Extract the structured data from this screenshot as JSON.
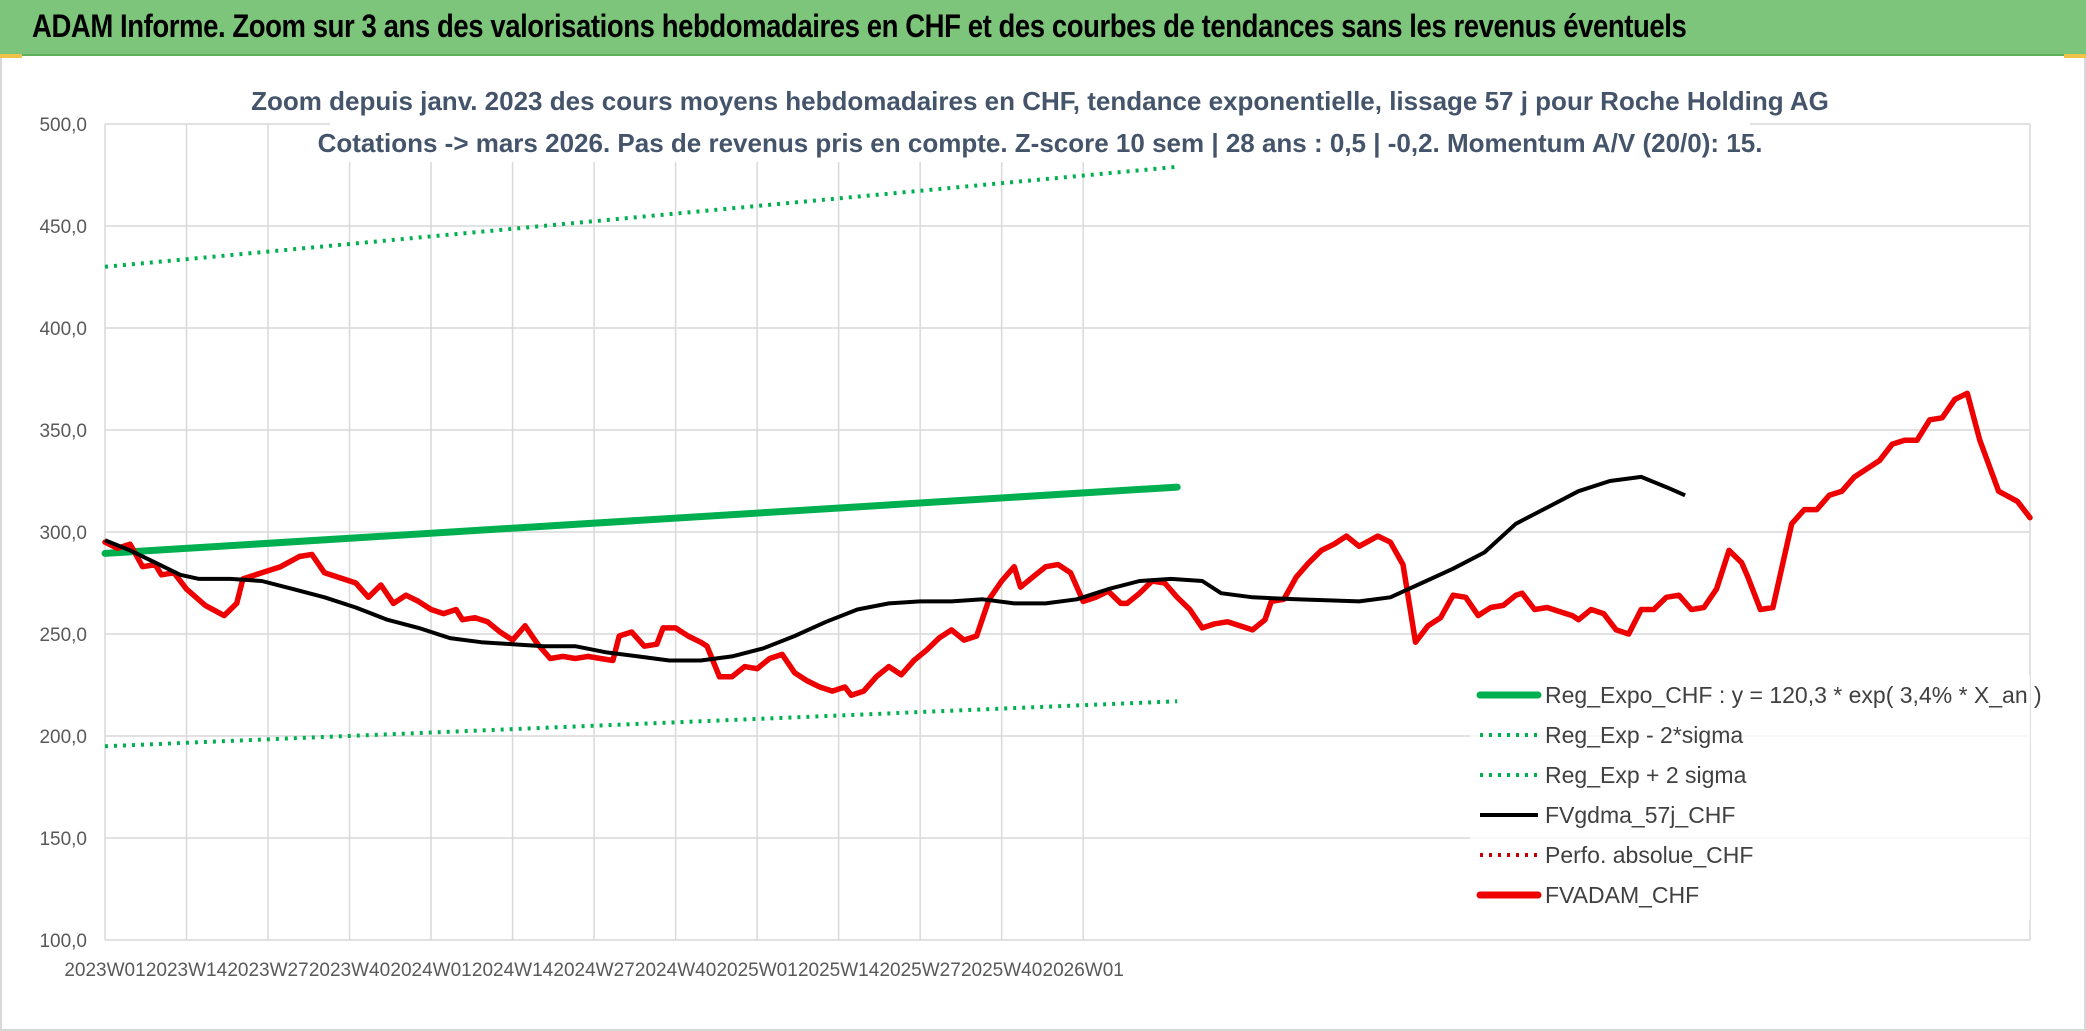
{
  "header": {
    "title": "ADAM Informe. Zoom sur 3 ans des valorisations hebdomadaires en CHF et des courbes de tendances sans les revenus éventuels"
  },
  "chart_data": {
    "type": "line",
    "title": "Zoom depuis janv. 2023 des cours moyens hebdomadaires en CHF, tendance exponentielle, lissage 57 j pour Roche Holding AG",
    "subtitle": "Cotations -> mars 2026. Pas de revenus pris en compte. Z-score 10 sem | 28 ans : 0,5 | -0,2. Momentum A/V (20/0): 15.",
    "ylim": [
      100,
      500
    ],
    "y_ticks": [
      "100,0",
      "150,0",
      "200,0",
      "250,0",
      "300,0",
      "350,0",
      "400,0",
      "450,0",
      "500,0"
    ],
    "x_ticks": [
      "2023W01",
      "2023W14",
      "2023W27",
      "2023W40",
      "2024W01",
      "2024W14",
      "2024W27",
      "2024W40",
      "2025W01",
      "2025W14",
      "2025W27",
      "2025W40",
      "2026W01"
    ],
    "grid": true,
    "legend_position": "bottom-right",
    "colors": {
      "trend": "#00b050",
      "smooth": "#000000",
      "adam": "#ee0000",
      "perfo": "#c00000"
    },
    "series": [
      {
        "name": "Reg_Expo_CHF : y = 120,3 * exp( 3,4% * X_an )",
        "style": "solid-thick",
        "color": "#00b050",
        "values": [
          [
            0,
            289.5
          ],
          [
            171,
            322
          ]
        ]
      },
      {
        "name": "Reg_Exp - 2*sigma",
        "style": "dotted",
        "color": "#00b050",
        "values": [
          [
            0,
            195
          ],
          [
            171,
            217
          ]
        ]
      },
      {
        "name": "Reg_Exp + 2 sigma",
        "style": "dotted",
        "color": "#00b050",
        "values": [
          [
            0,
            430
          ],
          [
            171,
            479
          ]
        ]
      },
      {
        "name": "FVgdma_57j_CHF",
        "style": "solid",
        "color": "#000000",
        "values": [
          [
            0,
            296
          ],
          [
            4,
            291
          ],
          [
            8,
            285
          ],
          [
            12,
            279
          ],
          [
            15,
            277
          ],
          [
            20,
            277
          ],
          [
            25,
            276
          ],
          [
            30,
            272
          ],
          [
            35,
            268
          ],
          [
            40,
            263
          ],
          [
            45,
            257
          ],
          [
            50,
            253
          ],
          [
            55,
            248
          ],
          [
            60,
            246
          ],
          [
            65,
            245
          ],
          [
            70,
            244
          ],
          [
            75,
            244
          ],
          [
            80,
            241
          ],
          [
            85,
            239
          ],
          [
            90,
            237
          ],
          [
            95,
            237
          ],
          [
            100,
            239
          ],
          [
            105,
            243
          ],
          [
            110,
            249
          ],
          [
            115,
            256
          ],
          [
            120,
            262
          ],
          [
            125,
            265
          ],
          [
            130,
            266
          ],
          [
            135,
            266
          ],
          [
            140,
            267
          ],
          [
            145,
            265
          ],
          [
            150,
            265
          ],
          [
            155,
            267
          ],
          [
            160,
            272
          ],
          [
            165,
            276
          ],
          [
            170,
            277
          ],
          [
            175,
            276
          ],
          [
            178,
            270
          ],
          [
            183,
            268
          ],
          [
            190,
            267
          ],
          [
            200,
            266
          ],
          [
            205,
            268
          ],
          [
            210,
            275
          ],
          [
            215,
            282
          ],
          [
            220,
            290
          ],
          [
            225,
            304
          ],
          [
            230,
            312
          ],
          [
            235,
            320
          ],
          [
            240,
            325
          ],
          [
            245,
            327
          ],
          [
            249,
            322
          ],
          [
            252,
            318
          ]
        ]
      },
      {
        "name": "Perfo. absolue_CHF",
        "style": "dotted",
        "color": "#c00000",
        "values": []
      },
      {
        "name": "FVADAM_CHF",
        "style": "solid-thick",
        "color": "#ee0000",
        "values": [
          [
            0,
            295
          ],
          [
            2,
            292
          ],
          [
            4,
            294
          ],
          [
            6,
            283
          ],
          [
            8,
            284
          ],
          [
            9,
            279
          ],
          [
            11,
            280
          ],
          [
            13,
            272
          ],
          [
            16,
            264
          ],
          [
            19,
            259
          ],
          [
            21,
            265
          ],
          [
            22,
            277
          ],
          [
            25,
            280
          ],
          [
            28,
            283
          ],
          [
            31,
            288
          ],
          [
            33,
            289
          ],
          [
            35,
            280
          ],
          [
            38,
            277
          ],
          [
            40,
            275
          ],
          [
            42,
            268
          ],
          [
            44,
            274
          ],
          [
            46,
            265
          ],
          [
            48,
            269
          ],
          [
            50,
            266
          ],
          [
            52,
            262
          ],
          [
            54,
            260
          ],
          [
            56,
            262
          ],
          [
            57,
            257
          ],
          [
            59,
            258
          ],
          [
            61,
            256
          ],
          [
            63,
            251
          ],
          [
            65,
            247
          ],
          [
            67,
            254
          ],
          [
            69,
            245
          ],
          [
            71,
            238
          ],
          [
            73,
            239
          ],
          [
            75,
            238
          ],
          [
            77,
            239
          ],
          [
            79,
            238
          ],
          [
            81,
            237
          ],
          [
            82,
            249
          ],
          [
            84,
            251
          ],
          [
            86,
            244
          ],
          [
            88,
            245
          ],
          [
            89,
            253
          ],
          [
            91,
            253
          ],
          [
            93,
            249
          ],
          [
            95,
            246
          ],
          [
            96,
            244
          ],
          [
            98,
            229
          ],
          [
            100,
            229
          ],
          [
            102,
            234
          ],
          [
            104,
            233
          ],
          [
            106,
            238
          ],
          [
            108,
            240
          ],
          [
            110,
            231
          ],
          [
            112,
            227
          ],
          [
            114,
            224
          ],
          [
            116,
            222
          ],
          [
            118,
            224
          ],
          [
            119,
            220
          ],
          [
            121,
            222
          ],
          [
            123,
            229
          ],
          [
            125,
            234
          ],
          [
            127,
            230
          ],
          [
            129,
            237
          ],
          [
            131,
            242
          ],
          [
            133,
            248
          ],
          [
            135,
            252
          ],
          [
            137,
            247
          ],
          [
            139,
            249
          ],
          [
            141,
            267
          ],
          [
            143,
            276
          ],
          [
            145,
            283
          ],
          [
            146,
            273
          ],
          [
            148,
            278
          ],
          [
            150,
            283
          ],
          [
            152,
            284
          ],
          [
            154,
            280
          ],
          [
            156,
            266
          ],
          [
            158,
            268
          ],
          [
            160,
            271
          ],
          [
            162,
            265
          ],
          [
            163,
            265
          ],
          [
            165,
            270
          ],
          [
            167,
            276
          ],
          [
            169,
            275
          ],
          [
            171,
            268
          ],
          [
            173,
            262
          ],
          [
            175,
            253
          ],
          [
            177,
            255
          ],
          [
            179,
            256
          ],
          [
            181,
            254
          ],
          [
            183,
            252
          ],
          [
            185,
            257
          ],
          [
            186,
            266
          ],
          [
            188,
            267
          ],
          [
            190,
            278
          ],
          [
            192,
            285
          ],
          [
            194,
            291
          ],
          [
            196,
            294
          ],
          [
            198,
            298
          ],
          [
            200,
            293
          ],
          [
            203,
            298
          ],
          [
            205,
            295
          ],
          [
            207,
            284
          ],
          [
            209,
            246
          ],
          [
            211,
            254
          ],
          [
            213,
            258
          ],
          [
            215,
            269
          ],
          [
            217,
            268
          ],
          [
            219,
            259
          ],
          [
            221,
            263
          ],
          [
            223,
            264
          ],
          [
            225,
            269
          ],
          [
            226,
            270
          ],
          [
            228,
            262
          ],
          [
            230,
            263
          ],
          [
            232,
            261
          ],
          [
            234,
            259
          ],
          [
            235,
            257
          ],
          [
            237,
            262
          ],
          [
            239,
            260
          ],
          [
            241,
            252
          ],
          [
            243,
            250
          ],
          [
            245,
            262
          ],
          [
            247,
            262
          ],
          [
            249,
            268
          ],
          [
            251,
            269
          ],
          [
            253,
            262
          ],
          [
            255,
            263
          ],
          [
            257,
            272
          ],
          [
            259,
            291
          ],
          [
            261,
            285
          ],
          [
            262,
            278
          ],
          [
            264,
            262
          ],
          [
            266,
            263
          ],
          [
            269,
            304
          ],
          [
            271,
            311
          ],
          [
            273,
            311
          ],
          [
            275,
            318
          ],
          [
            277,
            320
          ],
          [
            279,
            327
          ],
          [
            283,
            335
          ],
          [
            285,
            343
          ],
          [
            287,
            345
          ],
          [
            289,
            345
          ],
          [
            291,
            355
          ],
          [
            293,
            356
          ],
          [
            295,
            365
          ],
          [
            297,
            368
          ],
          [
            299,
            345
          ],
          [
            302,
            320
          ],
          [
            305,
            315
          ],
          [
            307,
            307
          ]
        ]
      }
    ]
  },
  "legend": [
    {
      "label": "Reg_Expo_CHF : y = 120,3 * exp( 3,4% * X_an )",
      "style": "solid-thick",
      "color": "#00b050"
    },
    {
      "label": "Reg_Exp - 2*sigma",
      "style": "dotted",
      "color": "#00b050"
    },
    {
      "label": "Reg_Exp + 2 sigma",
      "style": "dotted",
      "color": "#00b050"
    },
    {
      "label": "FVgdma_57j_CHF",
      "style": "solid",
      "color": "#000000"
    },
    {
      "label": "Perfo. absolue_CHF",
      "style": "dotted",
      "color": "#c00000"
    },
    {
      "label": "FVADAM_CHF",
      "style": "solid-thick",
      "color": "#ee0000"
    }
  ]
}
